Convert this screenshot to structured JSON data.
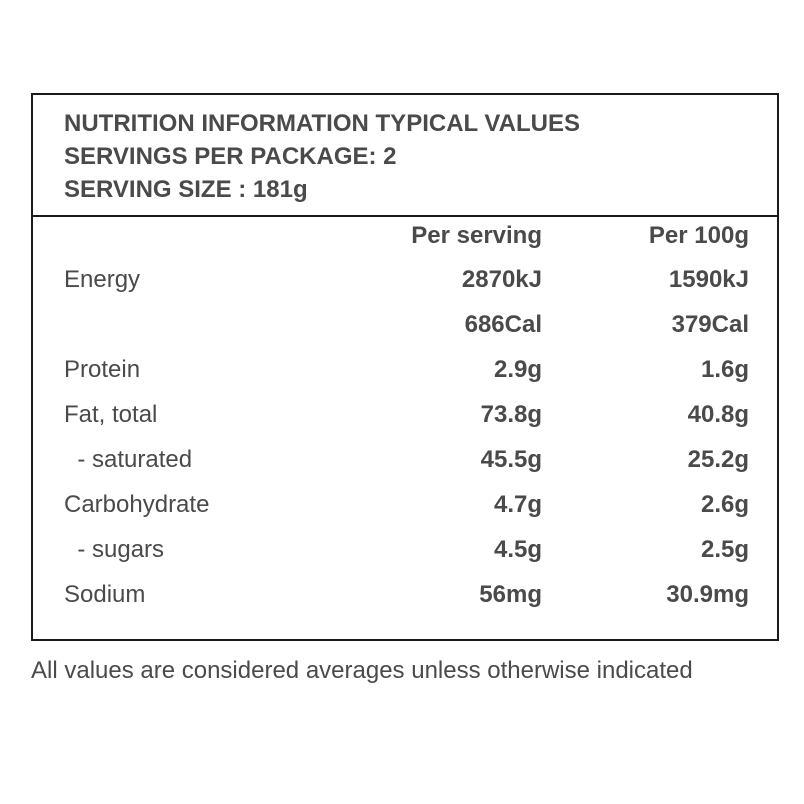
{
  "header": {
    "line1": "NUTRITION INFORMATION TYPICAL VALUES",
    "line2": "SERVINGS PER PACKAGE: 2",
    "line3": "SERVING SIZE : 181g"
  },
  "columns": {
    "per_serving": "Per serving",
    "per_100g": "Per 100g"
  },
  "rows": [
    {
      "name": "Energy",
      "per_serving": "2870kJ",
      "per_100g": "1590kJ"
    },
    {
      "name": "",
      "per_serving": "686Cal",
      "per_100g": "379Cal"
    },
    {
      "name": "Protein",
      "per_serving": "2.9g",
      "per_100g": "1.6g"
    },
    {
      "name": "Fat, total",
      "per_serving": "73.8g",
      "per_100g": "40.8g"
    },
    {
      "name": "  - saturated",
      "per_serving": "45.5g",
      "per_100g": "25.2g"
    },
    {
      "name": "Carbohydrate",
      "per_serving": "4.7g",
      "per_100g": "2.6g"
    },
    {
      "name": "  - sugars",
      "per_serving": "4.5g",
      "per_100g": "2.5g"
    },
    {
      "name": "Sodium",
      "per_serving": "56mg",
      "per_100g": "30.9mg"
    }
  ],
  "footnote": "All values are considered averages unless otherwise indicated"
}
